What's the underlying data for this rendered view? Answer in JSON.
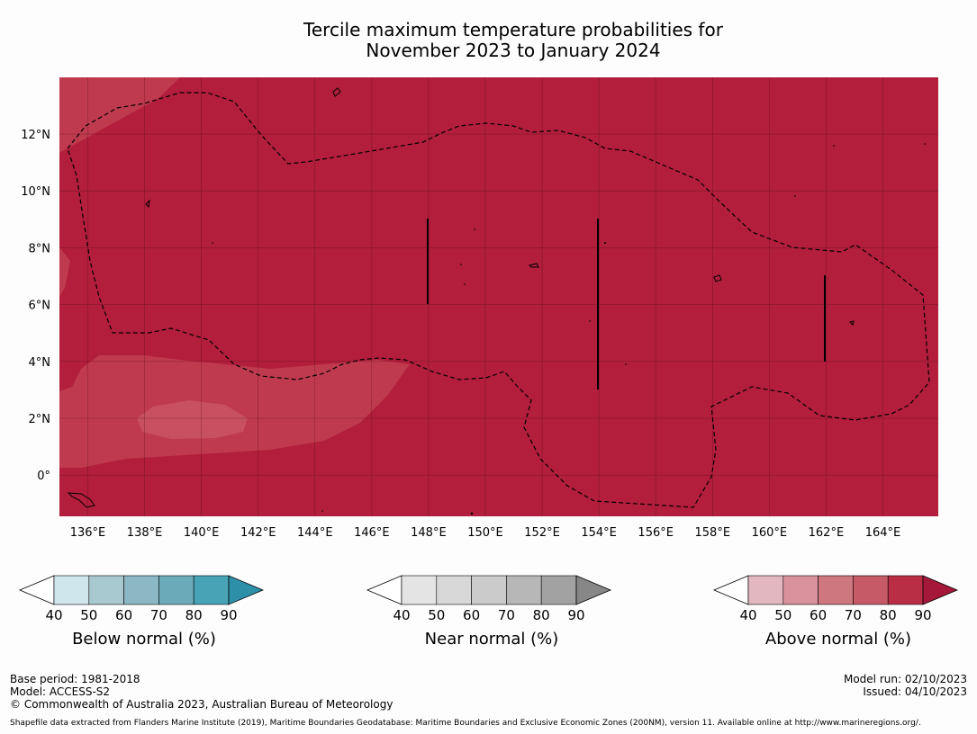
{
  "title": {
    "line1": "Tercile maximum temperature probabilities for",
    "line2": "November 2023 to January 2024"
  },
  "map": {
    "lon_ticks": [
      "136°E",
      "138°E",
      "140°E",
      "142°E",
      "144°E",
      "146°E",
      "148°E",
      "150°E",
      "152°E",
      "154°E",
      "156°E",
      "158°E",
      "160°E",
      "162°E",
      "164°E"
    ],
    "lat_ticks": [
      "12°N",
      "10°N",
      "8°N",
      "6°N",
      "4°N",
      "2°N",
      "0°"
    ],
    "colors": {
      "dominant": "#b21e3b",
      "mid": "#c03a4f",
      "light": "#c85060"
    }
  },
  "legends": [
    {
      "caption": "Below normal (%)",
      "ticks": [
        "40",
        "50",
        "60",
        "70",
        "80",
        "90"
      ],
      "colors": [
        "#cfe6ec",
        "#a9c9d1",
        "#8cb8c5",
        "#6aaab9",
        "#48a3b6",
        "#2e8fa8"
      ]
    },
    {
      "caption": "Near normal (%)",
      "ticks": [
        "40",
        "50",
        "60",
        "70",
        "80",
        "90"
      ],
      "colors": [
        "#e4e4e4",
        "#d8d8d8",
        "#cbcbcb",
        "#b7b7b7",
        "#a2a2a2",
        "#878787"
      ]
    },
    {
      "caption": "Above normal (%)",
      "ticks": [
        "40",
        "50",
        "60",
        "70",
        "80",
        "90"
      ],
      "colors": [
        "#e2b7c0",
        "#d9929c",
        "#ce777f",
        "#c65a66",
        "#b92e45",
        "#a5183a"
      ]
    }
  ],
  "footer": {
    "base_period": "Base period: 1981-2018",
    "model": "Model: ACCESS-S2",
    "copyright": "© Commonwealth of Australia 2023, Australian Bureau of Meteorology",
    "model_run": "Model run: 02/10/2023",
    "issued": "Issued: 04/10/2023",
    "shapefile": "Shapefile data extracted from Flanders Marine Institute (2019), Maritime Boundaries Geodatabase: Maritime Boundaries and Exclusive Economic Zones (200NM), version 11. Available online at http://www.marineregions.org/."
  }
}
